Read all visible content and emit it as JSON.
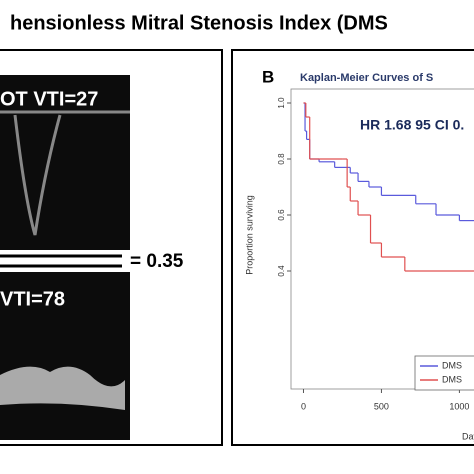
{
  "title": "hensionless Mitral Stenosis Index  (DMS",
  "left_panel": {
    "top_label": "OT VTI=27",
    "bottom_label": "VTI=78",
    "ratio": "= 0.35"
  },
  "chart_data": {
    "type": "step",
    "panel_label": "B",
    "title": "Kaplan-Meier Curves of S",
    "annotation": "HR 1.68 95 CI 0.",
    "y_label": "Proportion surviving",
    "x_label": "Days",
    "xlim": [
      -80,
      1100
    ],
    "ylim": [
      0,
      1.05
    ],
    "xticks": [
      0,
      500,
      1000
    ],
    "yticks": [
      0.4,
      0.6,
      0.8,
      {
        "value": 1,
        "label": "1.0"
      }
    ],
    "series": [
      {
        "name": "DMS",
        "color": "#5a5adc",
        "x": [
          0,
          10,
          20,
          40,
          100,
          200,
          300,
          350,
          420,
          500,
          720,
          850,
          1000
        ],
        "values": [
          1,
          0.9,
          0.87,
          0.8,
          0.79,
          0.77,
          0.75,
          0.72,
          0.7,
          0.67,
          0.64,
          0.6,
          0.58
        ]
      },
      {
        "name": "DMS",
        "color": "#e05050",
        "x": [
          0,
          15,
          40,
          250,
          280,
          300,
          350,
          430,
          500,
          650
        ],
        "values": [
          1,
          0.95,
          0.8,
          0.8,
          0.7,
          0.65,
          0.6,
          0.5,
          0.45,
          0.4
        ]
      }
    ]
  }
}
